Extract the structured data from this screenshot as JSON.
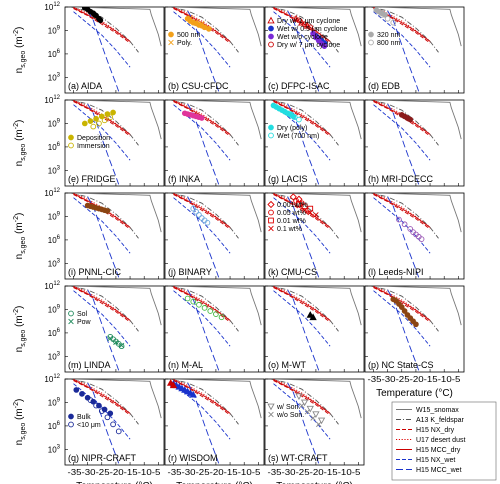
{
  "chart_data": {
    "type": "scatter",
    "layout": "5x4 panel grid",
    "x": {
      "label": "Temperature (°C)",
      "range": [
        -38,
        -3
      ],
      "ticks": [
        "-35",
        "-30",
        "-25",
        "-20",
        "-15",
        "-10",
        "-5"
      ]
    },
    "y": {
      "label": "n_s,geo (m^-2)",
      "scale": "log",
      "range_exp": [
        1,
        12
      ],
      "ticks": [
        "10^3",
        "10^6",
        "10^9",
        "10^12"
      ]
    },
    "reference_lines": [
      {
        "name": "W15_snomax",
        "color": "#777777",
        "dash": "solid",
        "x": [
          -35,
          -8,
          -7.5,
          -6.5,
          -5,
          -4
        ],
        "y": [
          12,
          11.7,
          11,
          10,
          8.5,
          7
        ]
      },
      {
        "name": "A13 K_feldspar",
        "color": "#555555",
        "dash": "dashdot",
        "x": [
          -36,
          -30,
          -25,
          -20,
          -15,
          -12
        ],
        "y": [
          12,
          11.5,
          10.7,
          9.3,
          7.6,
          6.2
        ]
      },
      {
        "name": "H15 NX_dry",
        "color": "#cc0000",
        "dash": "dash",
        "x": [
          -35,
          -30,
          -25,
          -20,
          -15
        ],
        "y": [
          11.8,
          10.9,
          9.8,
          8.7,
          7.4
        ]
      },
      {
        "name": "U17 desert dust",
        "color": "#dd0000",
        "dash": "dot",
        "x": [
          -35,
          -30,
          -25,
          -20,
          -15
        ],
        "y": [
          12,
          11.2,
          10.2,
          9,
          7.6
        ]
      },
      {
        "name": "H15 MCC_dry",
        "color": "#cc0000",
        "dash": "solid",
        "x": [
          -35,
          -30,
          -25,
          -20,
          -15
        ],
        "y": [
          11.9,
          11,
          10,
          8.9,
          7.6
        ]
      },
      {
        "name": "H15 NX_wet",
        "color": "#1a33cc",
        "dash": "dash",
        "x": [
          -35,
          -30,
          -25,
          -20,
          -15
        ],
        "y": [
          11.4,
          9.9,
          8.4,
          6.5,
          4.3
        ]
      },
      {
        "name": "H15 MCC_wet",
        "color": "#1a33cc",
        "dash": "longdash",
        "x": [
          -30,
          -28,
          -26,
          -24,
          -22,
          -20,
          -19
        ],
        "y": [
          11.5,
          10.3,
          8.2,
          6.1,
          4.1,
          2.2,
          1.2
        ]
      }
    ],
    "panels": [
      {
        "label": "(a) AIDA",
        "series": [
          {
            "name": "",
            "marker": "circle",
            "color": "#000000",
            "filled": true,
            "x": [
              -31,
              -30,
              -29,
              -28,
              -27.5,
              -27,
              -26,
              -25.5
            ],
            "y": [
              11.9,
              11.7,
              11.4,
              11.2,
              11,
              10.9,
              10.5,
              10.3
            ]
          }
        ]
      },
      {
        "label": "(b) CSU-CFDC",
        "series": [
          {
            "name": "500 nm",
            "marker": "circle",
            "color": "#f2a01b",
            "filled": true,
            "x": [
              -30,
              -29,
              -28,
              -27,
              -26,
              -25,
              -24,
              -22.5
            ],
            "y": [
              10.5,
              10.2,
              10,
              9.9,
              9.7,
              9.6,
              9.4,
              9.2
            ]
          },
          {
            "name": "Poly.",
            "marker": "cross",
            "color": "#f2a01b",
            "filled": false,
            "x": [
              -29,
              -27,
              -25
            ],
            "y": [
              10.6,
              10.1,
              9.9
            ]
          }
        ]
      },
      {
        "label": "(c) DFPC-ISAC",
        "series": [
          {
            "name": "Dry w/ 1 μm cyclone",
            "marker": "triangle",
            "color": "#cc0000",
            "filled": false,
            "x": [
              -27,
              -25,
              -23
            ],
            "y": [
              10.5,
              10,
              9.6
            ]
          },
          {
            "name": "Wet w/ 0.5 μm cyclone",
            "marker": "circle",
            "color": "#1a33cc",
            "filled": true,
            "x": [
              -20,
              -19,
              -18,
              -17
            ],
            "y": [
              8.3,
              8,
              7.7,
              7.4
            ]
          },
          {
            "name": "Wet w/o cyclone",
            "marker": "circle",
            "color": "#7a2ad6",
            "filled": true,
            "x": [
              -21,
              -20,
              -19,
              -18,
              -17
            ],
            "y": [
              8.6,
              8.1,
              7.7,
              7.3,
              7
            ]
          },
          {
            "name": "Dry w/ 7 μm cyclone",
            "marker": "circle",
            "color": "#cc0000",
            "filled": false,
            "x": [
              -26,
              -24,
              -22
            ],
            "y": [
              10.3,
              9.8,
              9.4
            ]
          }
        ]
      },
      {
        "label": "(d) EDB",
        "series": [
          {
            "name": "320 nm",
            "marker": "circle",
            "color": "#aaaaaa",
            "filled": true,
            "x": [
              -34,
              -33,
              -32,
              -31
            ],
            "y": [
              11.6,
              11.4,
              11.2,
              11
            ]
          },
          {
            "name": "800 nm",
            "marker": "circle",
            "color": "#aaaaaa",
            "filled": false,
            "x": [
              -32,
              -30,
              -28
            ],
            "y": [
              11,
              10.5,
              10
            ]
          }
        ]
      },
      {
        "label": "(e) FRIDGE",
        "series": [
          {
            "name": "Deposition",
            "marker": "circle",
            "color": "#c9b400",
            "filled": true,
            "x": [
              -31,
              -29,
              -27,
              -25,
              -23,
              -21
            ],
            "y": [
              9,
              9.3,
              9.6,
              9.9,
              10.2,
              10.4
            ]
          },
          {
            "name": "Immersion",
            "marker": "circle",
            "color": "#c9b400",
            "filled": false,
            "x": [
              -28,
              -26,
              -24,
              -22
            ],
            "y": [
              8.6,
              9,
              9.4,
              9.8
            ]
          }
        ]
      },
      {
        "label": "(f) INKA",
        "series": [
          {
            "name": "",
            "marker": "circle",
            "color": "#e0359b",
            "filled": true,
            "x": [
              -31,
              -30,
              -29,
              -28,
              -27,
              -26,
              -25
            ],
            "y": [
              10.3,
              10.2,
              10.1,
              10,
              9.9,
              9.8,
              9.7
            ]
          }
        ]
      },
      {
        "label": "(g) LACIS",
        "series": [
          {
            "name": "Dry (poly)",
            "marker": "circle",
            "color": "#22dde0",
            "filled": true,
            "x": [
              -35,
              -34,
              -33,
              -32,
              -31,
              -30,
              -29,
              -28
            ],
            "y": [
              11.3,
              11.1,
              10.9,
              10.7,
              10.5,
              10.3,
              10.1,
              9.9
            ]
          },
          {
            "name": "Wet (700 nm)",
            "marker": "circle",
            "color": "#22dde0",
            "filled": false,
            "x": [
              -29,
              -27.5,
              -26
            ],
            "y": [
              10.2,
              9.8,
              9.5
            ]
          }
        ]
      },
      {
        "label": "(h) MRI-DCECC",
        "series": [
          {
            "name": "",
            "marker": "circle",
            "color": "#8b1c1c",
            "filled": true,
            "x": [
              -25,
              -24,
              -23,
              -22
            ],
            "y": [
              10.1,
              9.9,
              9.7,
              9.5
            ]
          }
        ]
      },
      {
        "label": "(i) PNNL-CIC",
        "series": [
          {
            "name": "",
            "marker": "circle",
            "color": "#8b4513",
            "filled": true,
            "x": [
              -30,
              -29,
              -28,
              -27,
              -26,
              -25,
              -24,
              -23
            ],
            "y": [
              10.4,
              10.3,
              10.2,
              10.1,
              10,
              9.9,
              9.8,
              9.7
            ]
          }
        ]
      },
      {
        "label": "(j) BINARY",
        "series": [
          {
            "name": "",
            "marker": "circle",
            "color": "#6fa8dc",
            "filled": false,
            "x": [
              -28,
              -27,
              -26,
              -25,
              -24,
              -23
            ],
            "y": [
              10,
              9.6,
              9.2,
              8.8,
              8.5,
              8.2
            ]
          }
        ]
      },
      {
        "label": "(k) CMU-CS",
        "series": [
          {
            "name": "0.001wt%",
            "marker": "diamond",
            "color": "#dd0000",
            "filled": false,
            "x": [
              -28,
              -26
            ],
            "y": [
              11.5,
              11.2
            ]
          },
          {
            "name": "0.05 wt%",
            "marker": "circle",
            "color": "#dd0000",
            "filled": false,
            "x": [
              -27,
              -25
            ],
            "y": [
              11,
              10.7
            ]
          },
          {
            "name": "0.01 wt%",
            "marker": "square",
            "color": "#dd0000",
            "filled": false,
            "x": [
              -26,
              -24,
              -22
            ],
            "y": [
              10.6,
              10.3,
              10
            ]
          },
          {
            "name": "0.1 wt%",
            "marker": "cross",
            "color": "#dd0000",
            "filled": false,
            "x": [
              -24,
              -22,
              -20
            ],
            "y": [
              9.8,
              9.5,
              9.2
            ]
          }
        ]
      },
      {
        "label": "(l) Leeds-NIPI",
        "series": [
          {
            "name": "",
            "marker": "circle",
            "color": "#9b59b6",
            "filled": false,
            "x": [
              -26,
              -24,
              -22,
              -21,
              -20,
              -19,
              -18
            ],
            "y": [
              8.6,
              8,
              7.4,
              7,
              6.7,
              6.4,
              6.1
            ]
          }
        ]
      },
      {
        "label": "(m) LINDA",
        "series": [
          {
            "name": "Sol",
            "marker": "circle",
            "color": "#1f8a5c",
            "filled": false,
            "x": [
              -22,
              -21,
              -20,
              -19,
              -18
            ],
            "y": [
              5.5,
              5.2,
              4.9,
              4.6,
              4.3
            ]
          },
          {
            "name": "Pow",
            "marker": "cross",
            "color": "#1f8a5c",
            "filled": false,
            "x": [
              -22,
              -20,
              -18
            ],
            "y": [
              5.3,
              4.8,
              4.4
            ]
          }
        ]
      },
      {
        "label": "(n) M-AL",
        "series": [
          {
            "name": "",
            "marker": "circle",
            "color": "#44bb44",
            "filled": false,
            "x": [
              -30,
              -28,
              -26,
              -24,
              -22,
              -20,
              -18
            ],
            "y": [
              10.4,
              10,
              9.6,
              9.2,
              8.8,
              8.4,
              8
            ]
          }
        ]
      },
      {
        "label": "(o) M-WT",
        "series": [
          {
            "name": "",
            "marker": "triangle",
            "color": "#000000",
            "filled": true,
            "x": [
              -22,
              -21
            ],
            "y": [
              8.3,
              8
            ]
          }
        ]
      },
      {
        "label": "(p) NC State-CS",
        "series": [
          {
            "name": "",
            "marker": "circle",
            "color": "#8b4513",
            "filled": true,
            "x": [
              -28,
              -27,
              -26,
              -25,
              -24,
              -23,
              -22,
              -21,
              -20
            ],
            "y": [
              10.3,
              10.1,
              9.7,
              9.3,
              8.8,
              8.3,
              7.9,
              7.5,
              7.1
            ]
          }
        ]
      },
      {
        "label": "(q) NIPR-CRAFT",
        "series": [
          {
            "name": "Bulk",
            "marker": "circle",
            "color": "#1a2a99",
            "filled": true,
            "x": [
              -34,
              -32,
              -30,
              -28,
              -26,
              -24,
              -22
            ],
            "y": [
              10.6,
              10.1,
              9.6,
              9.1,
              8.6,
              8.1,
              7.6
            ]
          },
          {
            "name": "<10 μm",
            "marker": "circle",
            "color": "#1a2a99",
            "filled": false,
            "x": [
              -29,
              -27,
              -25,
              -23,
              -21,
              -19
            ],
            "y": [
              9.3,
              8.6,
              7.9,
              7.1,
              6.2,
              5.3
            ]
          }
        ]
      },
      {
        "label": "(r) WISDOM",
        "series": [
          {
            "name": "",
            "marker": "triangle",
            "color": "#1a33cc",
            "filled": true,
            "x": [
              -35,
              -34,
              -33,
              -32,
              -31,
              -30,
              -29,
              -28
            ],
            "y": [
              11.4,
              11.2,
              11,
              10.8,
              10.6,
              10.4,
              10.2,
              10
            ]
          },
          {
            "name": "",
            "marker": "triangle",
            "color": "#cc0000",
            "filled": true,
            "x": [
              -36,
              -35
            ],
            "y": [
              11.5,
              11.2
            ]
          }
        ]
      },
      {
        "label": "(s) WT-CRAFT",
        "series": [
          {
            "name": "w/ Son.",
            "marker": "triangle_down",
            "color": "#888888",
            "filled": false,
            "x": [
              -26,
              -24,
              -22,
              -20,
              -18
            ],
            "y": [
              9.8,
              9,
              8.2,
              7.5,
              6.7
            ]
          },
          {
            "name": "w/o Son.",
            "marker": "cross",
            "color": "#888888",
            "filled": false,
            "x": [
              -25,
              -23,
              -21,
              -19
            ],
            "y": [
              8.6,
              7.8,
              7,
              6.2
            ]
          }
        ]
      }
    ]
  }
}
